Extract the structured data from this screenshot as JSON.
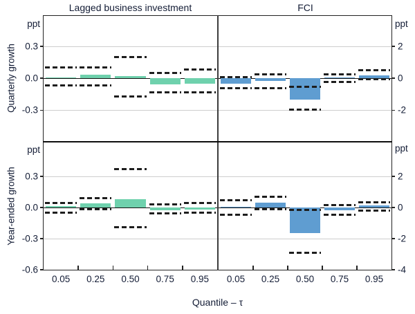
{
  "figure": {
    "columns": [
      "Lagged business investment",
      "FCI"
    ],
    "rows": [
      "Quarterly growth",
      "Year-ended growth"
    ],
    "unit_label": "ppt",
    "x_axis_label": "Quantile – τ",
    "x_ticks": [
      "0.05",
      "0.25",
      "0.50",
      "0.75",
      "0.95"
    ],
    "colors": {
      "investment_bar": "#6fd1ad",
      "fci_bar": "#5f9dd1",
      "ci_dash": "#1d1d1d",
      "gridline": "#cdcdcd",
      "axis_text": "#131c35"
    }
  },
  "chart_data": [
    {
      "panel": "quarterly-lagged-investment",
      "row": "Quarterly growth",
      "column": "Lagged business investment",
      "type": "bar",
      "unit": "ppt",
      "axis_side": "left",
      "show_x_labels": false,
      "x": [
        0.05,
        0.25,
        0.5,
        0.75,
        0.95
      ],
      "values": [
        0.01,
        0.03,
        0.02,
        -0.06,
        -0.05
      ],
      "ci_upper": [
        0.1,
        0.1,
        0.2,
        0.05,
        0.08
      ],
      "ci_lower": [
        -0.07,
        -0.07,
        -0.17,
        -0.13,
        -0.13
      ],
      "ylim": [
        -0.59,
        0.585
      ],
      "gridlines": [
        0.3,
        -0.3
      ],
      "yticks": [
        {
          "v": 0.3,
          "label": "0.3"
        },
        {
          "v": 0.0,
          "label": "0.0"
        },
        {
          "v": -0.3,
          "label": "-0.3"
        }
      ],
      "bar_color": "#6fd1ad"
    },
    {
      "panel": "quarterly-fci",
      "row": "Quarterly growth",
      "column": "FCI",
      "type": "bar",
      "unit": "ppt",
      "axis_side": "right",
      "show_x_labels": false,
      "x": [
        0.05,
        0.25,
        0.5,
        0.75,
        0.95
      ],
      "values": [
        -0.33,
        -0.17,
        -1.32,
        0.05,
        0.2
      ],
      "ci_upper": [
        0.05,
        0.23,
        -0.55,
        0.23,
        0.52
      ],
      "ci_lower": [
        -0.63,
        -0.63,
        -1.95,
        -0.25,
        -0.07
      ],
      "ylim": [
        -3.93,
        3.9
      ],
      "gridlines": [
        2,
        -2
      ],
      "yticks": [
        {
          "v": 2,
          "label": "2"
        },
        {
          "v": 0,
          "label": "0"
        },
        {
          "v": -2,
          "label": "-2"
        }
      ],
      "bar_color": "#5f9dd1"
    },
    {
      "panel": "year-ended-lagged-investment",
      "row": "Year-ended growth",
      "column": "Lagged business investment",
      "type": "bar",
      "unit": "ppt",
      "axis_side": "left",
      "show_x_labels": true,
      "x": [
        0.05,
        0.25,
        0.5,
        0.75,
        0.95
      ],
      "values": [
        0.01,
        0.04,
        0.08,
        -0.03,
        -0.02
      ],
      "ci_upper": [
        0.04,
        0.09,
        0.37,
        0.03,
        0.04
      ],
      "ci_lower": [
        -0.05,
        -0.02,
        -0.19,
        -0.06,
        -0.05
      ],
      "ylim": [
        -0.6,
        0.625
      ],
      "gridlines": [
        0.3,
        -0.3
      ],
      "yticks": [
        {
          "v": 0.3,
          "label": "0.3"
        },
        {
          "v": 0.0,
          "label": "0.0"
        },
        {
          "v": -0.3,
          "label": "-0.3"
        },
        {
          "v": -0.6,
          "label": "-0.6"
        }
      ],
      "bar_color": "#6fd1ad"
    },
    {
      "panel": "year-ended-fci",
      "row": "Year-ended growth",
      "column": "FCI",
      "type": "bar",
      "unit": "ppt",
      "axis_side": "right",
      "show_x_labels": true,
      "x": [
        0.05,
        0.25,
        0.5,
        0.75,
        0.95
      ],
      "values": [
        0.05,
        0.32,
        -1.65,
        -0.19,
        0.14
      ],
      "ci_upper": [
        0.46,
        0.68,
        -0.16,
        0.14,
        0.33
      ],
      "ci_lower": [
        -0.49,
        -0.1,
        -2.9,
        -0.49,
        -0.19
      ],
      "ylim": [
        -4.0,
        4.17
      ],
      "gridlines": [
        2,
        -2
      ],
      "yticks": [
        {
          "v": 2,
          "label": "2"
        },
        {
          "v": 0,
          "label": "0"
        },
        {
          "v": -2,
          "label": "-2"
        },
        {
          "v": -4,
          "label": "-4"
        }
      ],
      "bar_color": "#5f9dd1"
    }
  ]
}
